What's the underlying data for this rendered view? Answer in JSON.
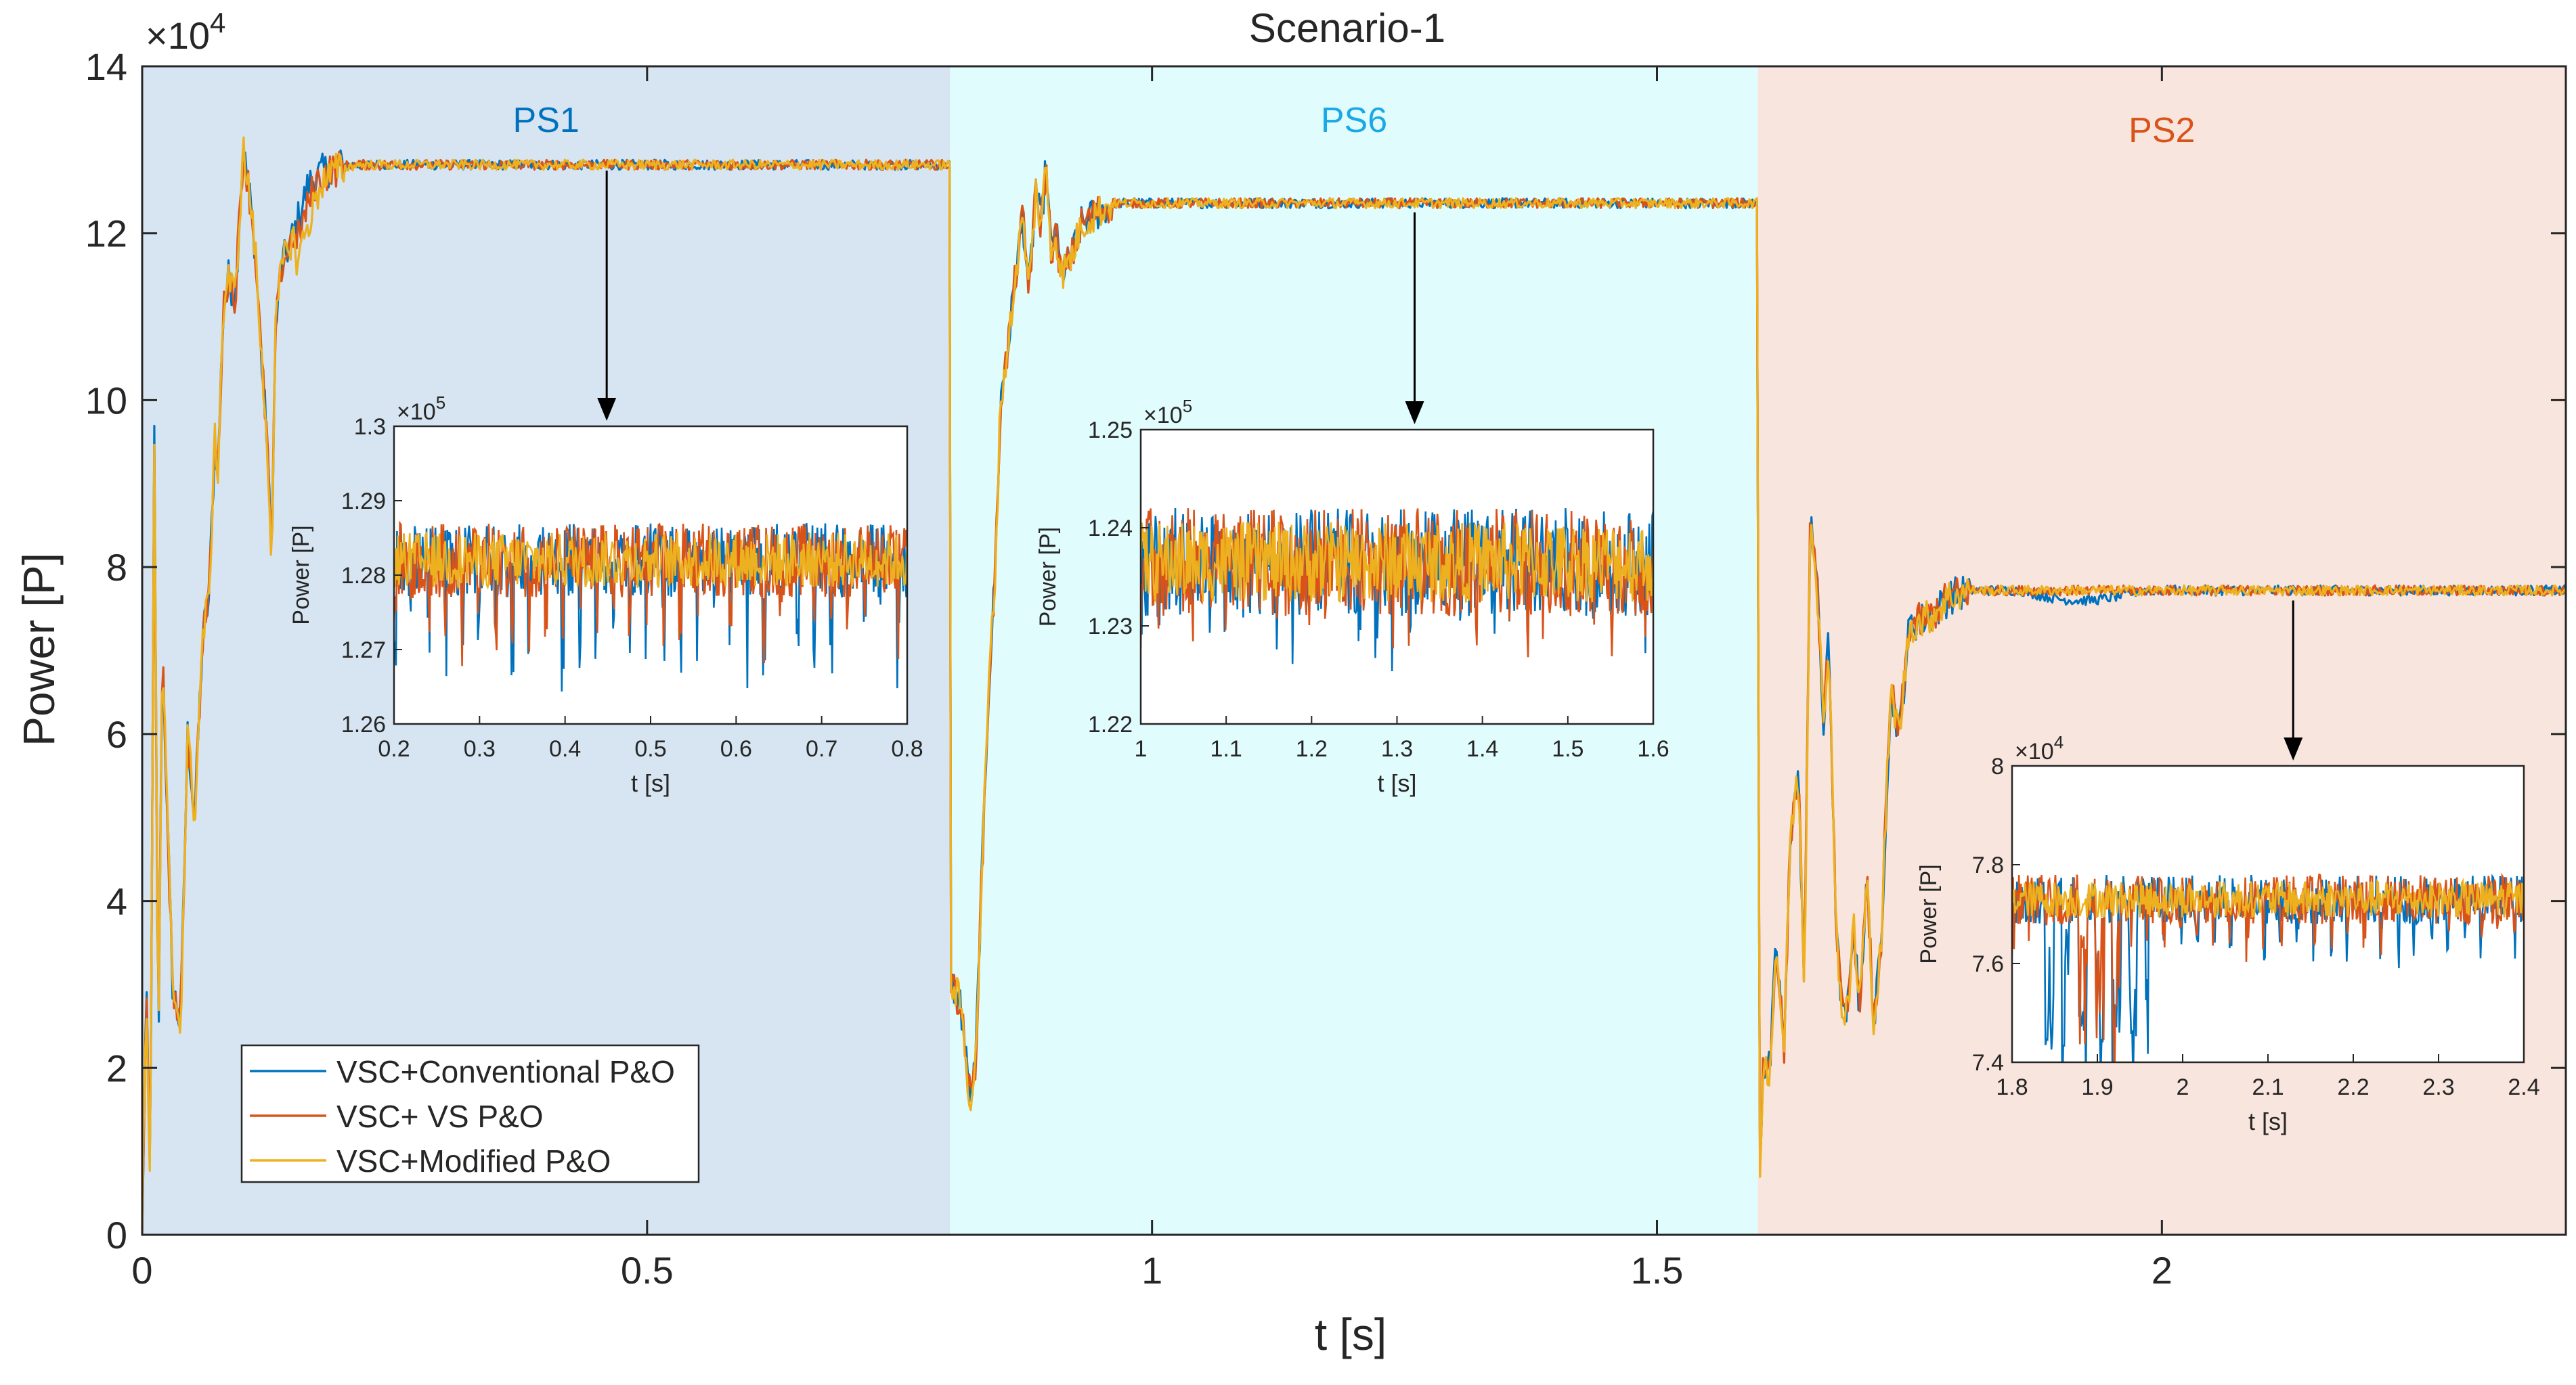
{
  "chart_data": {
    "type": "line",
    "title": "Scenario-1",
    "xlabel": "t [s]",
    "ylabel": "Power [P]",
    "xlim": [
      0,
      2.4
    ],
    "ylim": [
      0,
      14
    ],
    "y_exponent": "×10",
    "y_exponent_power": "4",
    "xticks": [
      0,
      0.5,
      1,
      1.5,
      2
    ],
    "xtick_labels": [
      "0",
      "0.5",
      "1",
      "1.5",
      "2"
    ],
    "yticks": [
      0,
      2,
      4,
      6,
      8,
      10,
      12,
      14
    ],
    "ytick_labels": [
      "0",
      "2",
      "4",
      "6",
      "8",
      "10",
      "12",
      "14"
    ],
    "grid": false,
    "legend_position": "bottom-left",
    "regions": [
      {
        "label": "PS1",
        "x_start": 0,
        "x_end": 0.8,
        "fill": "#d6e5f1",
        "label_color": "#0072bd"
      },
      {
        "label": "PS6",
        "x_start": 0.8,
        "x_end": 1.6,
        "fill": "#e1fcfc",
        "label_color": "#1aa9e6"
      },
      {
        "label": "PS2",
        "x_start": 1.6,
        "x_end": 2.4,
        "fill": "#f8e5dd",
        "label_color": "#d95319"
      }
    ],
    "steady_state_values": {
      "PS1": 12.82,
      "PS6": 12.36,
      "PS2": 7.72
    },
    "series": [
      {
        "name": "VSC+Conventional P&O",
        "color": "#0072bd"
      },
      {
        "name": "VSC+ VS P&O",
        "color": "#d95319"
      },
      {
        "name": "VSC+Modified P&O",
        "color": "#edb120"
      }
    ],
    "insets": [
      {
        "region": "PS1",
        "arrow_x": 0.46,
        "arrow_y": 12.75,
        "xlim": [
          0.2,
          0.8
        ],
        "ylim": [
          1.26,
          1.3
        ],
        "xticks": [
          0.2,
          0.3,
          0.4,
          0.5,
          0.6,
          0.7,
          0.8
        ],
        "xtick_labels": [
          "0.2",
          "0.3",
          "0.4",
          "0.5",
          "0.6",
          "0.7",
          "0.8"
        ],
        "yticks": [
          1.26,
          1.27,
          1.28,
          1.29,
          1.3
        ],
        "ytick_labels": [
          "1.26",
          "1.27",
          "1.28",
          "1.29",
          "1.3"
        ],
        "exponent": "×10",
        "exponent_power": "5",
        "xlabel": "t [s]",
        "ylabel": "Power [P]",
        "center": 1.282,
        "band": 0.005,
        "dip": 0.013
      },
      {
        "region": "PS6",
        "arrow_x": 1.26,
        "arrow_y": 12.25,
        "xlim": [
          1,
          1.6
        ],
        "ylim": [
          1.22,
          1.25
        ],
        "xticks": [
          1,
          1.1,
          1.2,
          1.3,
          1.4,
          1.5,
          1.6
        ],
        "xtick_labels": [
          "1",
          "1.1",
          "1.2",
          "1.3",
          "1.4",
          "1.5",
          "1.6"
        ],
        "yticks": [
          1.22,
          1.23,
          1.24,
          1.25
        ],
        "ytick_labels": [
          "1.22",
          "1.23",
          "1.24",
          "1.25"
        ],
        "exponent": "×10",
        "exponent_power": "5",
        "xlabel": "t [s]",
        "ylabel": "Power [P]",
        "center": 1.2365,
        "band": 0.0055,
        "dip": 0.006
      },
      {
        "region": "PS2",
        "arrow_x": 2.13,
        "arrow_y": 7.6,
        "xlim": [
          1.8,
          2.4
        ],
        "ylim": [
          7.4,
          8
        ],
        "xticks": [
          1.8,
          1.9,
          2,
          2.1,
          2.2,
          2.3,
          2.4
        ],
        "xtick_labels": [
          "1.8",
          "1.9",
          "2",
          "2.1",
          "2.2",
          "2.3",
          "2.4"
        ],
        "yticks": [
          7.4,
          7.6,
          7.8,
          8
        ],
        "ytick_labels": [
          "7.4",
          "7.6",
          "7.8",
          "8"
        ],
        "exponent": "×10",
        "exponent_power": "4",
        "xlabel": "t [s]",
        "ylabel": "Power [P]",
        "center": 7.73,
        "band": 0.05,
        "dip": 0.1
      }
    ]
  }
}
